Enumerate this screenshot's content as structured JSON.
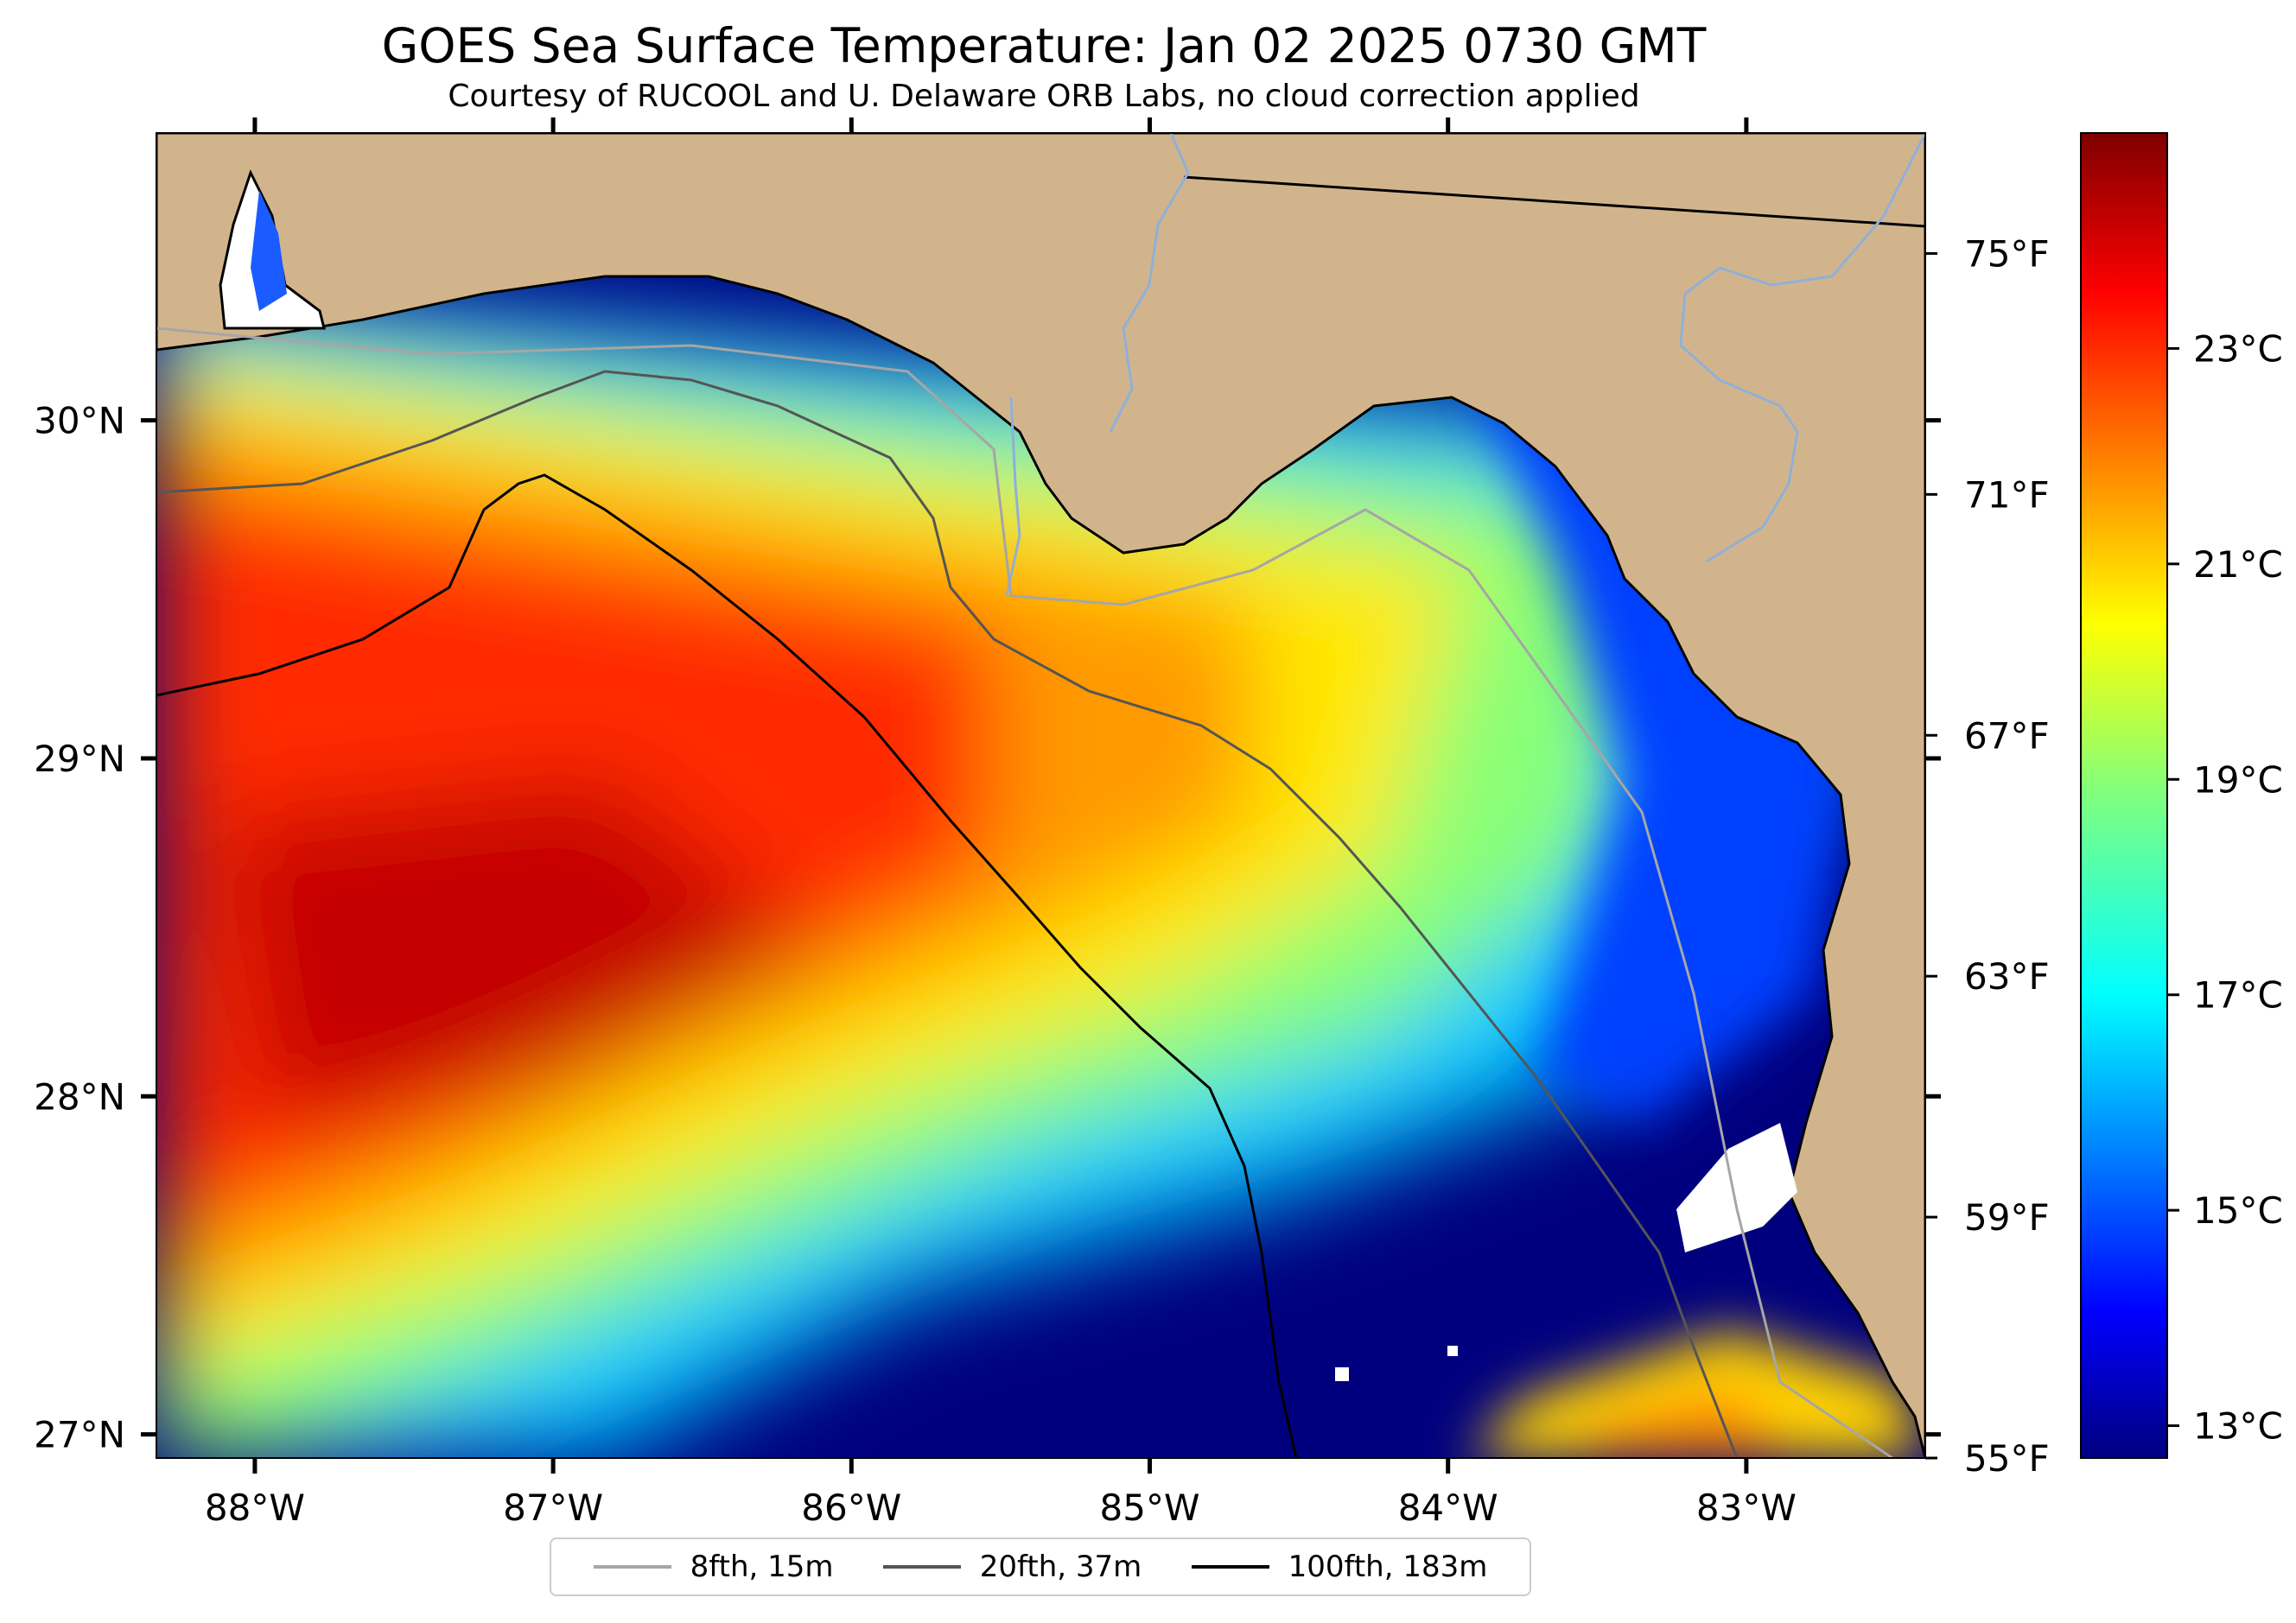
{
  "title": "GOES Sea Surface Temperature: Jan 02 2025 0730 GMT",
  "subtitle": "Courtesy of RUCOOL and U. Delaware ORB Labs, no cloud correction applied",
  "map": {
    "extent": {
      "lon": [
        -88.33,
        -82.4
      ],
      "lat": [
        26.93,
        30.85
      ]
    },
    "colors": {
      "land": "#d2b48c",
      "coastline": "#000000",
      "river": "#8fb0d9",
      "nodata": "#ffffff"
    },
    "lon_ticks": [
      {
        "value": -88,
        "label": "88°W"
      },
      {
        "value": -87,
        "label": "87°W"
      },
      {
        "value": -86,
        "label": "86°W"
      },
      {
        "value": -85,
        "label": "85°W"
      },
      {
        "value": -84,
        "label": "84°W"
      },
      {
        "value": -83,
        "label": "83°W"
      }
    ],
    "lat_ticks": [
      {
        "value": 30,
        "label": "30°N"
      },
      {
        "value": 29,
        "label": "29°N"
      },
      {
        "value": 28,
        "label": "28°N"
      },
      {
        "value": 27,
        "label": "27°N"
      }
    ],
    "fahrenheit_ticks": [
      {
        "value": 75,
        "label": "75°F"
      },
      {
        "value": 71,
        "label": "71°F"
      },
      {
        "value": 67,
        "label": "67°F"
      },
      {
        "value": 63,
        "label": "63°F"
      },
      {
        "value": 59,
        "label": "59°F"
      },
      {
        "value": 55,
        "label": "55°F"
      }
    ]
  },
  "colorbar": {
    "colormap": "jet",
    "range_c": [
      12.7,
      25.0
    ],
    "ticks": [
      {
        "value": 23,
        "label": "23°C"
      },
      {
        "value": 21,
        "label": "21°C"
      },
      {
        "value": 19,
        "label": "19°C"
      },
      {
        "value": 17,
        "label": "17°C"
      },
      {
        "value": 15,
        "label": "15°C"
      },
      {
        "value": 13,
        "label": "13°C"
      }
    ]
  },
  "legend": {
    "items": [
      {
        "label": "8fth, 15m",
        "color": "#a6a6a6"
      },
      {
        "label": "20fth, 37m",
        "color": "#555555"
      },
      {
        "label": "100fth, 183m",
        "color": "#000000"
      }
    ]
  }
}
